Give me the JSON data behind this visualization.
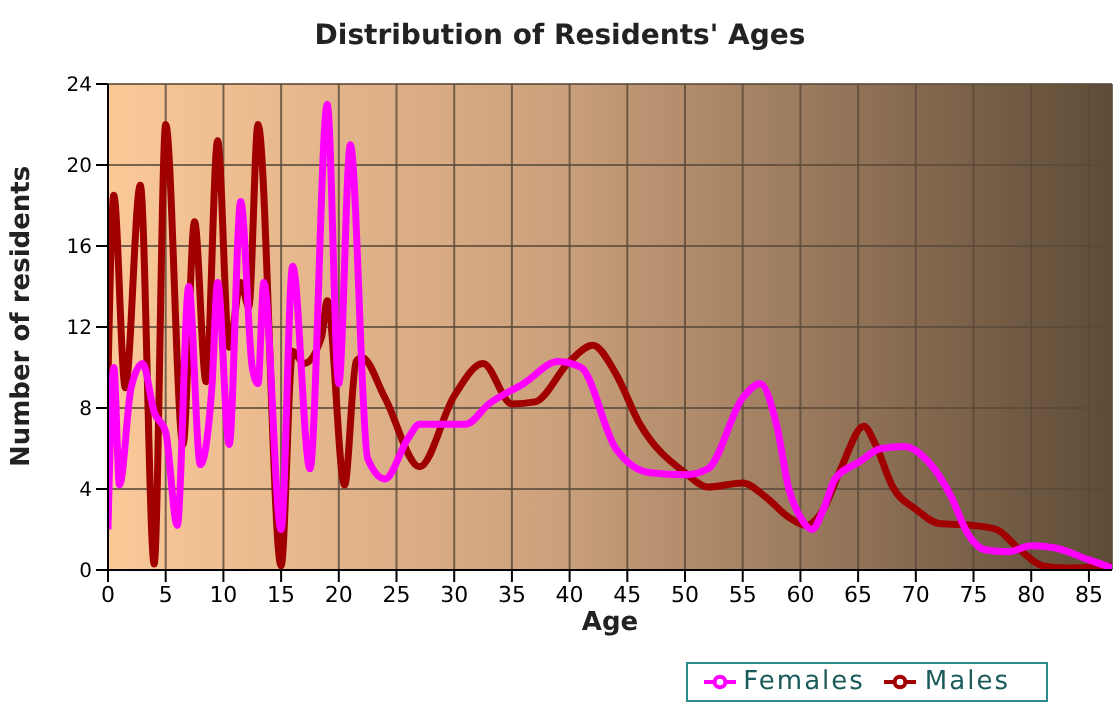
{
  "chart_data": {
    "type": "line",
    "title": "Distribution of Residents' Ages",
    "xlabel": "Age",
    "ylabel": "Number of residents",
    "xlim": [
      0,
      87
    ],
    "xticks": [
      0,
      5,
      10,
      15,
      20,
      25,
      30,
      35,
      40,
      45,
      50,
      55,
      60,
      65,
      70,
      75,
      80,
      85
    ],
    "ylim": [
      0,
      24
    ],
    "yticks": [
      0,
      4,
      8,
      12,
      16,
      20,
      24
    ],
    "grid": true,
    "legend": "bottom right",
    "marker": "none",
    "line_style": "solid",
    "series": [
      {
        "name": "Males",
        "color": "#a00000",
        "x": [
          0,
          0.5,
          1.5,
          2.8,
          4,
          5,
          6.5,
          7.5,
          8.5,
          9.5,
          10.5,
          11.5,
          12.2,
          13,
          15,
          16,
          17,
          18.5,
          19,
          20.5,
          21.5,
          22,
          24,
          27,
          30,
          32.5,
          35,
          37,
          40,
          42,
          44,
          46,
          50,
          52,
          55,
          57,
          59,
          60.5,
          62,
          63.5,
          65.5,
          66.5,
          68,
          70,
          72,
          75,
          77,
          79,
          81,
          83,
          87
        ],
        "values": [
          9.5,
          18.5,
          9,
          19,
          0.3,
          22,
          6.2,
          17.2,
          9.3,
          21.2,
          11,
          14.2,
          13,
          22,
          0.2,
          10.8,
          10.2,
          11.5,
          13.3,
          4.2,
          10.3,
          10.5,
          8.5,
          5.1,
          8.6,
          10.2,
          8.2,
          8.3,
          10.3,
          11.1,
          9.7,
          7.3,
          4.8,
          4.1,
          4.3,
          3.6,
          2.6,
          2.2,
          3,
          5,
          7.1,
          6.2,
          4.1,
          3,
          2.3,
          2.2,
          2,
          1,
          0.2,
          0.1,
          0.2
        ]
      },
      {
        "name": "Females",
        "color": "#ff00ff",
        "x": [
          0,
          0.5,
          1,
          2,
          3,
          4,
          5,
          6,
          7,
          8,
          9,
          9.5,
          10.5,
          11.5,
          12.5,
          13,
          13.5,
          15,
          16,
          17.5,
          19,
          20,
          21,
          22.5,
          24,
          26,
          27,
          29,
          31,
          33,
          36,
          39,
          41,
          44,
          47,
          50,
          52,
          55,
          56.5,
          58,
          59,
          60,
          61,
          62,
          63,
          65,
          67,
          69,
          71,
          73,
          74.5,
          76,
          78,
          80,
          82,
          85,
          87
        ],
        "values": [
          2,
          10,
          4.2,
          9,
          10.2,
          7.8,
          6.8,
          2.2,
          14,
          5.2,
          9,
          14.2,
          6.2,
          18.2,
          10,
          9.2,
          14.2,
          2,
          15,
          5,
          23,
          9.2,
          21,
          5.5,
          4.5,
          6.5,
          7.2,
          7.2,
          7.2,
          8.2,
          9.2,
          10.3,
          10,
          6,
          4.8,
          4.7,
          5,
          8.5,
          9.2,
          7,
          4,
          2.6,
          2,
          3,
          4.5,
          5.3,
          6,
          6.1,
          5.4,
          3.7,
          1.8,
          1,
          0.9,
          1.2,
          1.1,
          0.5,
          0.1
        ]
      }
    ]
  }
}
